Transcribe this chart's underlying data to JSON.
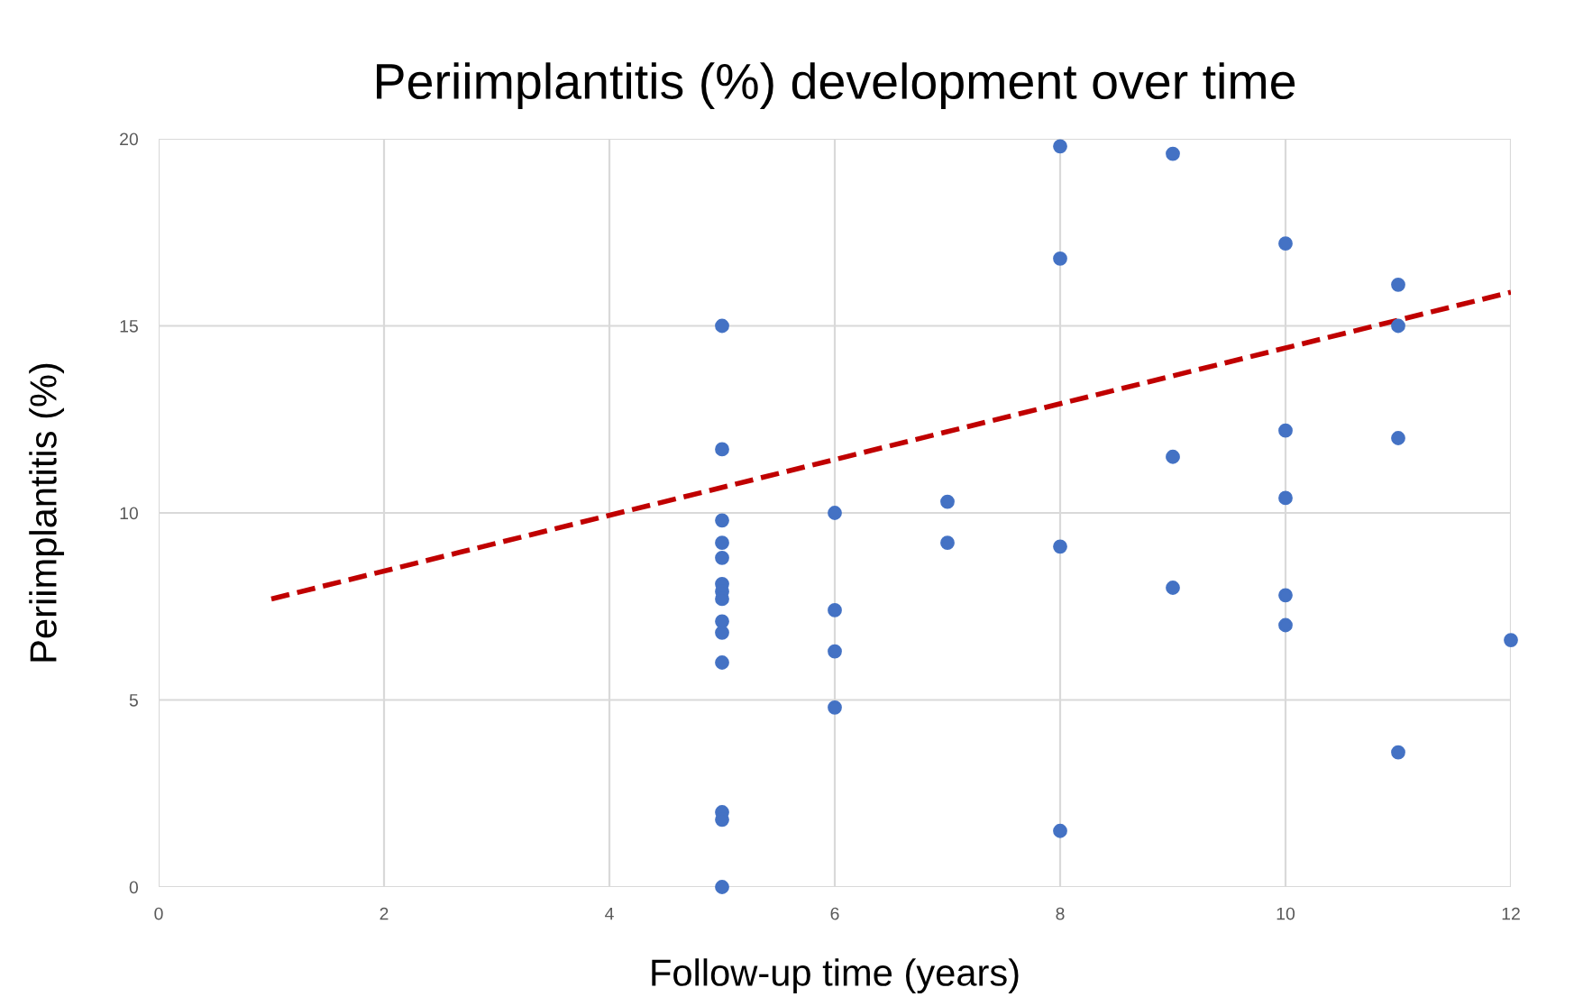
{
  "chart_data": {
    "type": "scatter",
    "title": "Periimplantitis (%) development over time",
    "xlabel": "Follow-up time (years)",
    "ylabel": "Periimplantitis (%)",
    "xlim": [
      0,
      12
    ],
    "xticks": [
      0,
      2,
      4,
      6,
      8,
      10,
      12
    ],
    "ylim": [
      0,
      20
    ],
    "yticks": [
      0,
      5,
      10,
      15,
      20
    ],
    "grid": true,
    "marker": "circle",
    "series": [
      {
        "color": "#4472c4",
        "x": [
          5,
          5,
          5,
          5,
          5,
          5,
          5,
          5,
          5,
          5,
          5,
          5,
          5,
          5,
          6,
          6,
          6,
          6,
          7,
          7,
          8,
          8,
          8,
          8,
          9,
          9,
          9,
          10,
          10,
          10,
          10,
          10,
          11,
          11,
          11,
          11,
          12
        ],
        "values": [
          15.0,
          11.7,
          9.8,
          9.2,
          8.8,
          8.1,
          7.9,
          7.7,
          7.1,
          6.8,
          6.0,
          2.0,
          1.8,
          0.0,
          10.0,
          7.4,
          6.3,
          4.8,
          10.3,
          9.2,
          19.8,
          16.8,
          9.1,
          1.5,
          19.6,
          11.5,
          8.0,
          17.2,
          12.2,
          10.4,
          7.8,
          7.0,
          16.1,
          15.0,
          12.0,
          3.6,
          6.6
        ]
      },
      {
        "type": "line",
        "color": "#c00000",
        "line_style": "dashed",
        "marker": "none",
        "x": [
          1,
          12
        ],
        "values": [
          7.7,
          15.9
        ]
      }
    ]
  }
}
